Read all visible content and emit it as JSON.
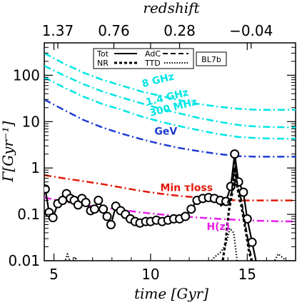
{
  "chart_data": {
    "type": "line",
    "title": "",
    "top_axis": {
      "label": "redshift",
      "tick_labels": [
        "1.37",
        "0.76",
        "0.28",
        "−0.04"
      ],
      "tick_times": [
        5.2,
        8.1,
        11.5,
        15.2
      ]
    },
    "xlabel": "time [Gyr]",
    "ylabel": "Γ[Gyr⁻¹]",
    "xlim": [
      4.5,
      17.5
    ],
    "ylim": [
      0.01,
      500
    ],
    "yscale": "log",
    "x_ticks": [
      5,
      10,
      15
    ],
    "x_tick_labels": [
      "5",
      "10",
      "15"
    ],
    "y_ticks": [
      0.01,
      0.1,
      1,
      10,
      100
    ],
    "y_tick_labels": [
      "0.01",
      "0.1",
      "1",
      "10",
      "100"
    ],
    "legend": {
      "placement": "top-center",
      "entries": [
        {
          "label": "Tot",
          "style": "solid"
        },
        {
          "label": "AdC",
          "style": "dashed"
        },
        {
          "label": "NR",
          "style": "bold-dashed"
        },
        {
          "label": "TTD",
          "style": "dotted"
        }
      ],
      "tag": "BL7b"
    },
    "series": [
      {
        "name": "8 GHz",
        "label_at": [
          9.6,
          55
        ],
        "color": "#00e5e5",
        "style": "dash-dot",
        "x": [
          4.5,
          5.5,
          6.5,
          7.5,
          8.5,
          9.5,
          10.5,
          11.5,
          12.5,
          13.5,
          14.5,
          15.5,
          16.5,
          17.5
        ],
        "y": [
          300,
          180,
          115,
          80,
          60,
          45,
          36,
          29,
          24,
          21,
          19,
          18,
          18,
          18
        ]
      },
      {
        "name": "1.4 GHz",
        "label_at": [
          9.8,
          22
        ],
        "color": "#00e5e5",
        "style": "dash-dot",
        "x": [
          4.5,
          5.5,
          6.5,
          7.5,
          8.5,
          9.5,
          10.5,
          11.5,
          12.5,
          13.5,
          14.5,
          15.5,
          16.5,
          17.5
        ],
        "y": [
          160,
          100,
          65,
          45,
          33,
          25,
          19,
          15,
          12,
          10,
          8.5,
          7.8,
          7.6,
          7.5
        ]
      },
      {
        "name": "300 MHz",
        "label_at": [
          10.0,
          13
        ],
        "color": "#00e5e5",
        "style": "dash-dot",
        "x": [
          4.5,
          5.5,
          6.5,
          7.5,
          8.5,
          9.5,
          10.5,
          11.5,
          12.5,
          13.5,
          14.5,
          15.5,
          16.5,
          17.5
        ],
        "y": [
          90,
          55,
          35,
          24,
          18,
          13,
          10,
          8,
          6.5,
          5.4,
          4.7,
          4.4,
          4.3,
          4.3
        ]
      },
      {
        "name": "GeV",
        "label_at": [
          10.2,
          5.2
        ],
        "color": "#1e3cd2",
        "style": "dash-dot",
        "x": [
          4.5,
          5.5,
          6.5,
          7.5,
          8.5,
          9.5,
          10.5,
          11.5,
          12.5,
          13.5,
          14.5,
          15.5,
          16.5,
          17.5
        ],
        "y": [
          30,
          18,
          11,
          7.5,
          5.5,
          4.2,
          3.3,
          2.7,
          2.3,
          2.0,
          1.8,
          1.75,
          1.75,
          1.75
        ]
      },
      {
        "name": "Min τloss",
        "label_at": [
          10.5,
          0.32
        ],
        "color": "#e01a0a",
        "style": "dash-dot",
        "x": [
          4.5,
          5.5,
          6.5,
          7.5,
          8.5,
          9.5,
          10.5,
          11.5,
          12.5,
          13.5,
          14.5,
          15.5,
          16.5,
          17.5
        ],
        "y": [
          0.7,
          0.6,
          0.52,
          0.45,
          0.38,
          0.32,
          0.28,
          0.25,
          0.23,
          0.21,
          0.2,
          0.2,
          0.2,
          0.2
        ]
      },
      {
        "name": "H(z)",
        "label_at": [
          12.9,
          0.046
        ],
        "color": "#e61ee6",
        "style": "dash-dot",
        "x": [
          4.5,
          5.5,
          6.5,
          7.5,
          8.5,
          9.5,
          10.5,
          11.5,
          12.5,
          13.5,
          14.5,
          15.5,
          16.5,
          17.5
        ],
        "y": [
          0.23,
          0.19,
          0.16,
          0.14,
          0.125,
          0.11,
          0.1,
          0.092,
          0.085,
          0.08,
          0.076,
          0.073,
          0.071,
          0.07
        ]
      },
      {
        "name": "Tot",
        "color": "#000000",
        "style": "solid-markers",
        "x": [
          4.55,
          4.75,
          4.95,
          5.2,
          5.45,
          5.65,
          5.85,
          6.05,
          6.25,
          6.45,
          6.65,
          6.9,
          7.1,
          7.3,
          7.55,
          7.75,
          7.95,
          8.2,
          8.45,
          8.7,
          8.95,
          9.2,
          9.45,
          9.75,
          10.0,
          10.3,
          10.6,
          10.9,
          11.2,
          11.5,
          11.8,
          12.1,
          12.4,
          12.7,
          13.0,
          13.3,
          13.6,
          13.9,
          14.15,
          14.35,
          14.55,
          14.8,
          15.0,
          15.25,
          15.5
        ],
        "y": [
          0.35,
          0.11,
          0.085,
          0.17,
          0.2,
          0.28,
          0.22,
          0.2,
          0.16,
          0.22,
          0.18,
          0.12,
          0.13,
          0.2,
          0.13,
          0.09,
          0.06,
          0.15,
          0.12,
          0.1,
          0.08,
          0.07,
          0.065,
          0.07,
          0.07,
          0.075,
          0.07,
          0.075,
          0.08,
          0.08,
          0.09,
          0.13,
          0.2,
          0.22,
          0.23,
          0.22,
          0.2,
          0.19,
          0.4,
          2.0,
          0.5,
          0.3,
          0.08,
          0.025,
          0.008
        ]
      },
      {
        "name": "AdC",
        "color": "#000000",
        "style": "dashed",
        "x": [
          13.6,
          13.8,
          14.0,
          14.2,
          14.35,
          14.5,
          14.7,
          14.9,
          15.1,
          15.3
        ],
        "y": [
          0.15,
          0.17,
          0.18,
          0.3,
          1.4,
          0.4,
          0.2,
          0.06,
          0.02,
          0.008
        ]
      },
      {
        "name": "NR",
        "color": "#000000",
        "style": "bold-dashed",
        "x": [
          13.7,
          13.9,
          14.05,
          14.2,
          14.35,
          14.5,
          14.7,
          14.9,
          15.1,
          15.3
        ],
        "y": [
          0.008,
          0.03,
          0.12,
          0.25,
          1.0,
          0.35,
          0.15,
          0.05,
          0.015,
          0.008
        ]
      },
      {
        "name": "TTD",
        "color": "#000000",
        "style": "dotted",
        "x": [
          5.5,
          5.7,
          5.9,
          6.1,
          6.3,
          6.5,
          13.0,
          13.3,
          13.6,
          13.9,
          14.1,
          14.3,
          14.5,
          16.3,
          16.6,
          16.9,
          17.2
        ],
        "y": [
          0.008,
          0.014,
          0.008,
          0.012,
          0.008,
          0.008,
          0.008,
          0.012,
          0.015,
          0.022,
          0.05,
          0.04,
          0.008,
          0.008,
          0.014,
          0.011,
          0.008
        ]
      }
    ]
  }
}
